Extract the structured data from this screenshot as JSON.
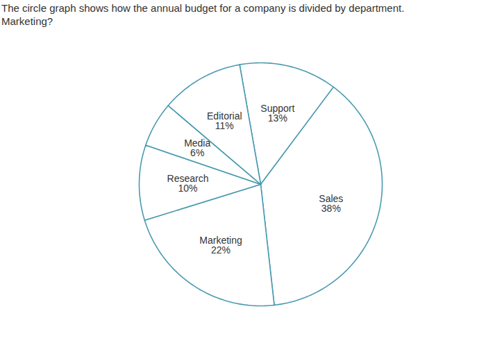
{
  "chart_data": {
    "type": "pie",
    "title": "The circle graph shows how the annual budget for a company is divided by department.",
    "subtitle": "Marketing?",
    "categories": [
      "Support",
      "Sales",
      "Marketing",
      "Research",
      "Media",
      "Editorial"
    ],
    "values": [
      13,
      38,
      22,
      10,
      6,
      11
    ],
    "value_labels": [
      "13%",
      "38%",
      "22%",
      "10%",
      "6%",
      "11%"
    ],
    "data_labels": true,
    "color": "#4a9bb0"
  }
}
